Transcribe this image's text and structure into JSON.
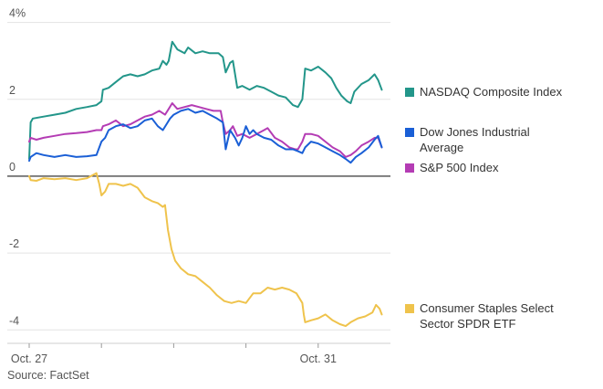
{
  "chart_data": {
    "type": "line",
    "y_tick_labels": [
      "4%",
      "2",
      "0",
      "-2",
      "-4"
    ],
    "y_ticks": [
      4,
      2,
      0,
      -2,
      -4
    ],
    "ylim": [
      -4.35,
      4.3
    ],
    "x_tick_labels": [
      "Oct. 27",
      "Oct. 31"
    ],
    "x_tick_positions": [
      0,
      4
    ],
    "xlim": [
      0,
      5
    ],
    "grid": true,
    "legend_placement": "right",
    "source": "Source: FactSet",
    "series": [
      {
        "name": "NASDAQ Composite Index",
        "color": "#23968a",
        "points": [
          [
            0,
            0.45
          ],
          [
            0.02,
            1.4
          ],
          [
            0.05,
            1.5
          ],
          [
            0.2,
            1.55
          ],
          [
            0.35,
            1.6
          ],
          [
            0.5,
            1.65
          ],
          [
            0.65,
            1.75
          ],
          [
            0.8,
            1.8
          ],
          [
            0.93,
            1.85
          ],
          [
            1.0,
            1.95
          ],
          [
            1.02,
            2.25
          ],
          [
            1.1,
            2.3
          ],
          [
            1.2,
            2.45
          ],
          [
            1.3,
            2.6
          ],
          [
            1.4,
            2.65
          ],
          [
            1.5,
            2.6
          ],
          [
            1.6,
            2.65
          ],
          [
            1.7,
            2.75
          ],
          [
            1.8,
            2.8
          ],
          [
            1.85,
            3.0
          ],
          [
            1.9,
            2.9
          ],
          [
            1.93,
            3.0
          ],
          [
            1.98,
            3.5
          ],
          [
            2.05,
            3.3
          ],
          [
            2.15,
            3.2
          ],
          [
            2.2,
            3.35
          ],
          [
            2.3,
            3.2
          ],
          [
            2.4,
            3.25
          ],
          [
            2.5,
            3.2
          ],
          [
            2.62,
            3.2
          ],
          [
            2.68,
            3.1
          ],
          [
            2.72,
            2.7
          ],
          [
            2.78,
            2.95
          ],
          [
            2.82,
            3.0
          ],
          [
            2.88,
            2.3
          ],
          [
            2.95,
            2.35
          ],
          [
            3.05,
            2.25
          ],
          [
            3.15,
            2.35
          ],
          [
            3.25,
            2.3
          ],
          [
            3.35,
            2.2
          ],
          [
            3.45,
            2.1
          ],
          [
            3.55,
            2.05
          ],
          [
            3.65,
            1.85
          ],
          [
            3.72,
            1.8
          ],
          [
            3.78,
            2.0
          ],
          [
            3.82,
            2.8
          ],
          [
            3.9,
            2.75
          ],
          [
            4.0,
            2.85
          ],
          [
            4.1,
            2.7
          ],
          [
            4.18,
            2.55
          ],
          [
            4.25,
            2.3
          ],
          [
            4.32,
            2.1
          ],
          [
            4.4,
            1.95
          ],
          [
            4.45,
            1.9
          ],
          [
            4.5,
            2.2
          ],
          [
            4.6,
            2.4
          ],
          [
            4.7,
            2.5
          ],
          [
            4.78,
            2.65
          ],
          [
            4.83,
            2.5
          ],
          [
            4.88,
            2.25
          ]
        ]
      },
      {
        "name": "Dow Jones Industrial Average",
        "color": "#1a5fd6",
        "points": [
          [
            0,
            0.4
          ],
          [
            0.02,
            0.5
          ],
          [
            0.1,
            0.6
          ],
          [
            0.2,
            0.55
          ],
          [
            0.35,
            0.5
          ],
          [
            0.5,
            0.55
          ],
          [
            0.65,
            0.5
          ],
          [
            0.8,
            0.52
          ],
          [
            0.93,
            0.55
          ],
          [
            1.0,
            0.9
          ],
          [
            1.05,
            1.0
          ],
          [
            1.1,
            1.2
          ],
          [
            1.2,
            1.3
          ],
          [
            1.3,
            1.35
          ],
          [
            1.4,
            1.25
          ],
          [
            1.5,
            1.3
          ],
          [
            1.6,
            1.45
          ],
          [
            1.7,
            1.5
          ],
          [
            1.78,
            1.3
          ],
          [
            1.85,
            1.2
          ],
          [
            1.9,
            1.35
          ],
          [
            1.95,
            1.5
          ],
          [
            2.0,
            1.6
          ],
          [
            2.1,
            1.7
          ],
          [
            2.2,
            1.75
          ],
          [
            2.3,
            1.65
          ],
          [
            2.4,
            1.7
          ],
          [
            2.5,
            1.6
          ],
          [
            2.6,
            1.5
          ],
          [
            2.68,
            1.4
          ],
          [
            2.72,
            0.7
          ],
          [
            2.78,
            1.2
          ],
          [
            2.85,
            1.0
          ],
          [
            2.9,
            0.8
          ],
          [
            2.95,
            1.0
          ],
          [
            3.0,
            1.3
          ],
          [
            3.05,
            1.1
          ],
          [
            3.1,
            1.2
          ],
          [
            3.15,
            1.1
          ],
          [
            3.25,
            1.0
          ],
          [
            3.35,
            0.95
          ],
          [
            3.45,
            0.8
          ],
          [
            3.55,
            0.7
          ],
          [
            3.65,
            0.7
          ],
          [
            3.72,
            0.65
          ],
          [
            3.78,
            0.6
          ],
          [
            3.82,
            0.75
          ],
          [
            3.9,
            0.9
          ],
          [
            4.0,
            0.85
          ],
          [
            4.1,
            0.75
          ],
          [
            4.2,
            0.65
          ],
          [
            4.3,
            0.55
          ],
          [
            4.38,
            0.45
          ],
          [
            4.45,
            0.35
          ],
          [
            4.52,
            0.5
          ],
          [
            4.6,
            0.6
          ],
          [
            4.7,
            0.75
          ],
          [
            4.78,
            0.95
          ],
          [
            4.83,
            1.05
          ],
          [
            4.88,
            0.75
          ]
        ]
      },
      {
        "name": "S&P 500 Index",
        "color": "#b43cb4",
        "points": [
          [
            0,
            0.9
          ],
          [
            0.02,
            1.0
          ],
          [
            0.1,
            0.95
          ],
          [
            0.2,
            1.0
          ],
          [
            0.35,
            1.05
          ],
          [
            0.5,
            1.1
          ],
          [
            0.65,
            1.12
          ],
          [
            0.8,
            1.15
          ],
          [
            0.93,
            1.2
          ],
          [
            1.0,
            1.2
          ],
          [
            1.02,
            1.3
          ],
          [
            1.1,
            1.35
          ],
          [
            1.2,
            1.45
          ],
          [
            1.3,
            1.3
          ],
          [
            1.4,
            1.35
          ],
          [
            1.5,
            1.45
          ],
          [
            1.6,
            1.55
          ],
          [
            1.7,
            1.6
          ],
          [
            1.8,
            1.7
          ],
          [
            1.88,
            1.6
          ],
          [
            1.93,
            1.75
          ],
          [
            1.98,
            1.9
          ],
          [
            2.05,
            1.75
          ],
          [
            2.15,
            1.8
          ],
          [
            2.25,
            1.85
          ],
          [
            2.35,
            1.8
          ],
          [
            2.45,
            1.75
          ],
          [
            2.55,
            1.7
          ],
          [
            2.65,
            1.7
          ],
          [
            2.68,
            1.4
          ],
          [
            2.72,
            1.1
          ],
          [
            2.78,
            1.2
          ],
          [
            2.82,
            1.3
          ],
          [
            2.88,
            1.05
          ],
          [
            2.95,
            1.1
          ],
          [
            3.05,
            1.0
          ],
          [
            3.15,
            1.1
          ],
          [
            3.25,
            1.2
          ],
          [
            3.3,
            1.25
          ],
          [
            3.4,
            1.0
          ],
          [
            3.5,
            0.9
          ],
          [
            3.6,
            0.75
          ],
          [
            3.68,
            0.7
          ],
          [
            3.72,
            0.7
          ],
          [
            3.78,
            0.9
          ],
          [
            3.82,
            1.1
          ],
          [
            3.9,
            1.1
          ],
          [
            4.0,
            1.05
          ],
          [
            4.1,
            0.9
          ],
          [
            4.2,
            0.75
          ],
          [
            4.3,
            0.65
          ],
          [
            4.38,
            0.5
          ],
          [
            4.45,
            0.55
          ],
          [
            4.52,
            0.65
          ],
          [
            4.6,
            0.8
          ],
          [
            4.7,
            0.9
          ],
          [
            4.78,
            1.0
          ],
          [
            4.83,
            1.0
          ],
          [
            4.88,
            0.75
          ]
        ]
      },
      {
        "name": "Consumer Staples Select Sector SPDR ETF",
        "color": "#efc34c",
        "points": [
          [
            0,
            0
          ],
          [
            0.02,
            -0.1
          ],
          [
            0.1,
            -0.12
          ],
          [
            0.2,
            -0.05
          ],
          [
            0.35,
            -0.08
          ],
          [
            0.5,
            -0.05
          ],
          [
            0.65,
            -0.1
          ],
          [
            0.8,
            -0.05
          ],
          [
            0.93,
            0.08
          ],
          [
            0.97,
            -0.2
          ],
          [
            1.0,
            -0.5
          ],
          [
            1.05,
            -0.4
          ],
          [
            1.1,
            -0.2
          ],
          [
            1.2,
            -0.2
          ],
          [
            1.3,
            -0.25
          ],
          [
            1.4,
            -0.2
          ],
          [
            1.5,
            -0.3
          ],
          [
            1.6,
            -0.55
          ],
          [
            1.7,
            -0.65
          ],
          [
            1.78,
            -0.7
          ],
          [
            1.85,
            -0.8
          ],
          [
            1.88,
            -0.75
          ],
          [
            1.92,
            -1.4
          ],
          [
            1.97,
            -1.9
          ],
          [
            2.02,
            -2.2
          ],
          [
            2.1,
            -2.4
          ],
          [
            2.2,
            -2.55
          ],
          [
            2.3,
            -2.6
          ],
          [
            2.4,
            -2.75
          ],
          [
            2.5,
            -2.9
          ],
          [
            2.6,
            -3.1
          ],
          [
            2.7,
            -3.25
          ],
          [
            2.8,
            -3.3
          ],
          [
            2.9,
            -3.25
          ],
          [
            3.0,
            -3.3
          ],
          [
            3.1,
            -3.05
          ],
          [
            3.2,
            -3.05
          ],
          [
            3.3,
            -2.9
          ],
          [
            3.4,
            -2.95
          ],
          [
            3.5,
            -2.9
          ],
          [
            3.6,
            -2.95
          ],
          [
            3.7,
            -3.05
          ],
          [
            3.78,
            -3.3
          ],
          [
            3.8,
            -3.6
          ],
          [
            3.82,
            -3.8
          ],
          [
            3.9,
            -3.75
          ],
          [
            4.0,
            -3.7
          ],
          [
            4.1,
            -3.6
          ],
          [
            4.2,
            -3.75
          ],
          [
            4.3,
            -3.85
          ],
          [
            4.38,
            -3.9
          ],
          [
            4.45,
            -3.8
          ],
          [
            4.55,
            -3.7
          ],
          [
            4.65,
            -3.65
          ],
          [
            4.75,
            -3.55
          ],
          [
            4.8,
            -3.35
          ],
          [
            4.85,
            -3.45
          ],
          [
            4.88,
            -3.6
          ]
        ]
      }
    ]
  }
}
